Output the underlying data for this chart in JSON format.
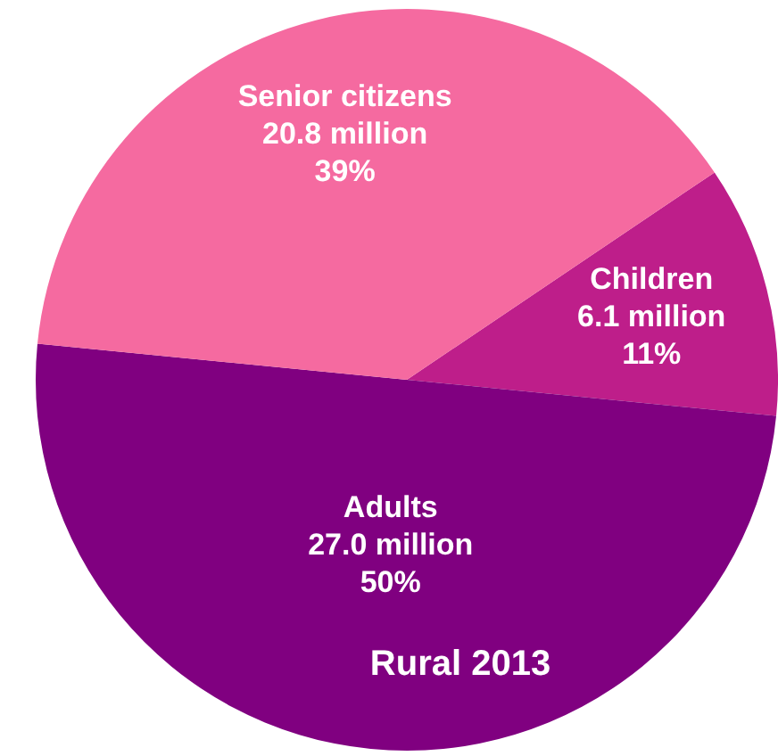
{
  "chart_data": {
    "type": "pie",
    "title": "Rural 2013",
    "categories": [
      "Children",
      "Adults",
      "Senior citizens"
    ],
    "values": [
      11,
      50,
      39
    ],
    "value_labels": [
      "6.1 million\n11%",
      "27.0 million\n50%",
      "20.8 million\n39%"
    ],
    "colors": [
      "#be1e8a",
      "#800080",
      "#f56aa0"
    ],
    "legend": false
  }
}
